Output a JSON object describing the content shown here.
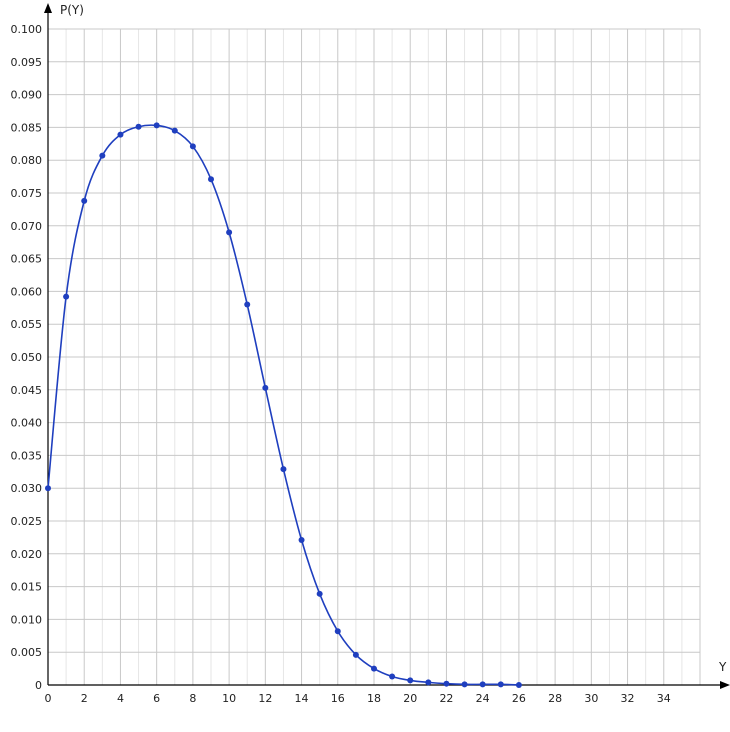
{
  "chart_data": {
    "type": "line",
    "xlabel": "Y",
    "ylabel": "P(Y)",
    "xlim": [
      0,
      36
    ],
    "ylim": [
      0,
      0.1
    ],
    "x_ticks": [
      0,
      2,
      4,
      6,
      8,
      10,
      12,
      14,
      16,
      18,
      20,
      22,
      24,
      26,
      28,
      30,
      32,
      34
    ],
    "x_tick_labels": [
      "0",
      "2",
      "4",
      "6",
      "8",
      "10",
      "12",
      "14",
      "16",
      "18",
      "20",
      "22",
      "24",
      "26",
      "28",
      "30",
      "32",
      "34"
    ],
    "y_ticks": [
      0,
      0.005,
      0.01,
      0.015,
      0.02,
      0.025,
      0.03,
      0.035,
      0.04,
      0.045,
      0.05,
      0.055,
      0.06,
      0.065,
      0.07,
      0.075,
      0.08,
      0.085,
      0.09,
      0.095,
      0.1
    ],
    "y_tick_labels": [
      "0",
      "0.005",
      "0.010",
      "0.015",
      "0.020",
      "0.025",
      "0.030",
      "0.035",
      "0.040",
      "0.045",
      "0.050",
      "0.055",
      "0.060",
      "0.065",
      "0.070",
      "0.075",
      "0.080",
      "0.085",
      "0.090",
      "0.095",
      "0.100"
    ],
    "grid": true,
    "series": [
      {
        "color": "#1f3fbf",
        "x": [
          0,
          1,
          2,
          3,
          4,
          5,
          6,
          7,
          8,
          9,
          10,
          11,
          12,
          13,
          14,
          15,
          16,
          17,
          18,
          19,
          20,
          21,
          22,
          23,
          24,
          25,
          26
        ],
        "y": [
          0.03,
          0.0592,
          0.0738,
          0.0807,
          0.0839,
          0.0851,
          0.0853,
          0.0845,
          0.0821,
          0.0771,
          0.069,
          0.058,
          0.0453,
          0.0329,
          0.0221,
          0.0139,
          0.0082,
          0.0046,
          0.0025,
          0.0013,
          0.0007,
          0.0004,
          0.0002,
          0.0001,
          0.0001,
          0.0001,
          0.0
        ]
      }
    ]
  }
}
